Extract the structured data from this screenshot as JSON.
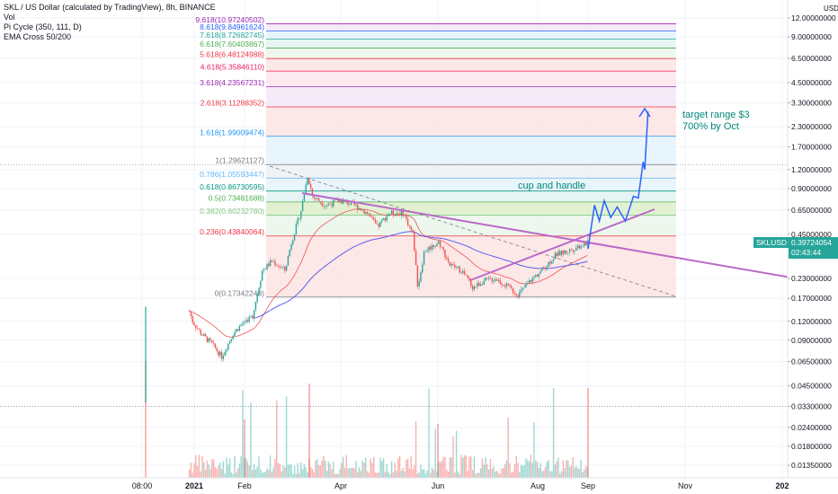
{
  "header": {
    "title": "SKL / US Dollar (calculated by TradingView), 8h, BINANCE",
    "indicators": [
      "Vol",
      "Pi Cycle (350, 111, D)",
      "EMA Cross 50/200"
    ]
  },
  "price_label": {
    "symbol": "SKLUSD",
    "price": "0.39724054",
    "countdown": "02:43:44",
    "color": "#26a69a"
  },
  "currency": "USD",
  "annotations": {
    "cup": "cup and handle",
    "target_line1": "target range $3",
    "target_line2": "700% by Oct"
  },
  "chart_data": {
    "type": "candlestick",
    "title": "SKL / US Dollar (calculated by TradingView), 8h, BINANCE",
    "y_scale": "log",
    "price_ticks": [
      "12.00000000",
      "9.00000000",
      "6.50000000",
      "4.50000000",
      "3.30000000",
      "2.30000000",
      "1.70000000",
      "1.20000000",
      "0.90000000",
      "0.65000000",
      "0.45000000",
      "0.23000000",
      "0.17000000",
      "0.12000000",
      "0.09000000",
      "0.06500000",
      "0.04500000",
      "0.03300000",
      "0.02400000",
      "0.01800000",
      "0.01350000"
    ],
    "time_ticks": [
      "08:00",
      "2021",
      "Feb",
      "Apr",
      "Jun",
      "Aug",
      "Sep",
      "Nov",
      "202"
    ],
    "fib_levels": [
      {
        "label": "0(0.17342248)",
        "value": 0.17342248,
        "color": "#787b86"
      },
      {
        "label": "0.236(0.43840064)",
        "value": 0.43840064,
        "color": "#f23645"
      },
      {
        "label": "0.382(0.60232780)",
        "value": 0.6023278,
        "color": "#81c784"
      },
      {
        "label": "0.5(0.73481688)",
        "value": 0.73481688,
        "color": "#4caf50"
      },
      {
        "label": "0.618(0.86730595)",
        "value": 0.86730595,
        "color": "#089981"
      },
      {
        "label": "0.786(1.05593447)",
        "value": 1.05593447,
        "color": "#64b5f6"
      },
      {
        "label": "1(1.29621127)",
        "value": 1.29621127,
        "color": "#787b86"
      },
      {
        "label": "1.618(1.99009474)",
        "value": 1.99009474,
        "color": "#2196f3"
      },
      {
        "label": "2.618(3.11288352)",
        "value": 3.11288352,
        "color": "#f23645"
      },
      {
        "label": "3.618(4.23567231)",
        "value": 4.23567231,
        "color": "#9c27b0"
      },
      {
        "label": "4.618(5.35846110)",
        "value": 5.3584611,
        "color": "#e91e63"
      },
      {
        "label": "5.618(6.48124988)",
        "value": 6.48124988,
        "color": "#f23645"
      },
      {
        "label": "6.618(7.60403867)",
        "value": 7.60403867,
        "color": "#4caf50"
      },
      {
        "label": "7.618(8.72682745)",
        "value": 8.72682745,
        "color": "#26a69a"
      },
      {
        "label": "8.618(9.84961624)",
        "value": 9.84961624,
        "color": "#2962ff"
      },
      {
        "label": "9.618(10.97240502)",
        "value": 10.97240502,
        "color": "#9c27b0"
      }
    ],
    "price_path": [
      {
        "t": "2020-12-29",
        "p": 0.14
      },
      {
        "t": "2020-12-31",
        "p": 0.12
      },
      {
        "t": "2021-01-05",
        "p": 0.1
      },
      {
        "t": "2021-01-12",
        "p": 0.085
      },
      {
        "t": "2021-01-18",
        "p": 0.07
      },
      {
        "t": "2021-01-25",
        "p": 0.1
      },
      {
        "t": "2021-02-01",
        "p": 0.12
      },
      {
        "t": "2021-02-06",
        "p": 0.13
      },
      {
        "t": "2021-02-12",
        "p": 0.26
      },
      {
        "t": "2021-02-18",
        "p": 0.3
      },
      {
        "t": "2021-02-26",
        "p": 0.26
      },
      {
        "t": "2021-03-02",
        "p": 0.4
      },
      {
        "t": "2021-03-08",
        "p": 0.65
      },
      {
        "t": "2021-03-12",
        "p": 1.1
      },
      {
        "t": "2021-03-15",
        "p": 0.8
      },
      {
        "t": "2021-03-23",
        "p": 0.7
      },
      {
        "t": "2021-04-01",
        "p": 0.75
      },
      {
        "t": "2021-04-10",
        "p": 0.7
      },
      {
        "t": "2021-04-18",
        "p": 0.62
      },
      {
        "t": "2021-04-24",
        "p": 0.5
      },
      {
        "t": "2021-05-01",
        "p": 0.62
      },
      {
        "t": "2021-05-10",
        "p": 0.62
      },
      {
        "t": "2021-05-16",
        "p": 0.45
      },
      {
        "t": "2021-05-19",
        "p": 0.2
      },
      {
        "t": "2021-05-23",
        "p": 0.35
      },
      {
        "t": "2021-06-01",
        "p": 0.4
      },
      {
        "t": "2021-06-08",
        "p": 0.28
      },
      {
        "t": "2021-06-15",
        "p": 0.26
      },
      {
        "t": "2021-06-22",
        "p": 0.2
      },
      {
        "t": "2021-06-28",
        "p": 0.22
      },
      {
        "t": "2021-07-06",
        "p": 0.23
      },
      {
        "t": "2021-07-14",
        "p": 0.2
      },
      {
        "t": "2021-07-20",
        "p": 0.18
      },
      {
        "t": "2021-07-27",
        "p": 0.22
      },
      {
        "t": "2021-08-05",
        "p": 0.27
      },
      {
        "t": "2021-08-12",
        "p": 0.33
      },
      {
        "t": "2021-08-20",
        "p": 0.35
      },
      {
        "t": "2021-08-27",
        "p": 0.38
      },
      {
        "t": "2021-09-01",
        "p": 0.4
      }
    ],
    "projection_path": [
      {
        "t": "2021-09-01",
        "p": 0.36
      },
      {
        "t": "2021-09-05",
        "p": 0.7
      },
      {
        "t": "2021-09-08",
        "p": 0.55
      },
      {
        "t": "2021-09-11",
        "p": 0.75
      },
      {
        "t": "2021-09-15",
        "p": 0.58
      },
      {
        "t": "2021-09-19",
        "p": 0.68
      },
      {
        "t": "2021-09-24",
        "p": 0.55
      },
      {
        "t": "2021-09-29",
        "p": 0.8
      },
      {
        "t": "2021-10-02",
        "p": 0.78
      },
      {
        "t": "2021-10-05",
        "p": 1.35
      },
      {
        "t": "2021-10-06",
        "p": 1.2
      },
      {
        "t": "2021-10-08",
        "p": 2.9
      }
    ],
    "colors": {
      "up": "#26a69a",
      "down": "#ef5350",
      "projection": "#2962ff",
      "trendline": "#ba68c8"
    }
  }
}
